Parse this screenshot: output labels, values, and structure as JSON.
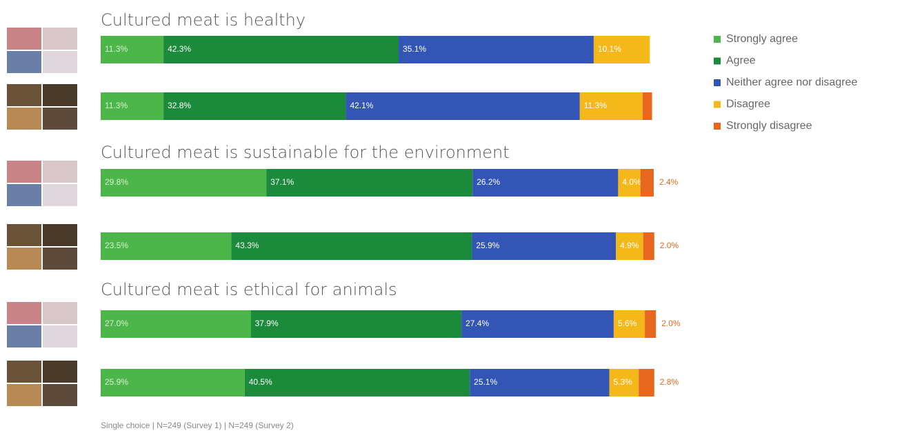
{
  "chart_data": {
    "type": "bar",
    "orientation": "horizontal",
    "stacked": true,
    "titles": [
      "Cultured meat is healthy",
      "Cultured meat is sustainable for the environment",
      "Cultured meat is ethical for animals"
    ],
    "categories": [
      null,
      null,
      null,
      null,
      null,
      null
    ],
    "series": [
      {
        "name": "Strongly agree",
        "color": "#4cb64a",
        "values": [
          11.3,
          11.3,
          29.8,
          23.5,
          27.0,
          25.9
        ],
        "value_labels": [
          "11.3%",
          "11.3%",
          "29.8%",
          "23.5%",
          "27.0%",
          "25.9%"
        ]
      },
      {
        "name": "Agree",
        "color": "#1c8a3b",
        "values": [
          42.3,
          32.8,
          37.1,
          43.3,
          37.9,
          40.5
        ],
        "value_labels": [
          "42.3%",
          "32.8%",
          "37.1%",
          "43.3%",
          "37.9%",
          "40.5%"
        ]
      },
      {
        "name": "Neither agree nor disagree",
        "color": "#3356b6",
        "values": [
          35.1,
          42.1,
          26.2,
          25.9,
          27.4,
          25.1
        ],
        "value_labels": [
          "35.1%",
          "42.1%",
          "26.2%",
          "25.9%",
          "27.4%",
          "25.1%"
        ]
      },
      {
        "name": "Disagree",
        "color": "#f4b81a",
        "values": [
          10.1,
          11.3,
          4.0,
          4.9,
          5.6,
          5.3
        ],
        "value_labels": [
          "10.1%",
          "11.3%",
          "4.0%",
          "4.9%",
          "5.6%",
          "5.3%"
        ]
      },
      {
        "name": "Strongly disagree",
        "color": "#e8671f",
        "values": [
          null,
          1.7,
          2.4,
          2.0,
          2.0,
          2.8
        ],
        "value_labels": [
          null,
          null,
          "2.4%",
          "2.0%",
          "2.0%",
          "2.8%"
        ]
      }
    ],
    "xlim": [
      0,
      100
    ],
    "legend": "right",
    "footnote": "Single choice | N=249 (Survey 1) | N=249 (Survey 2)"
  }
}
